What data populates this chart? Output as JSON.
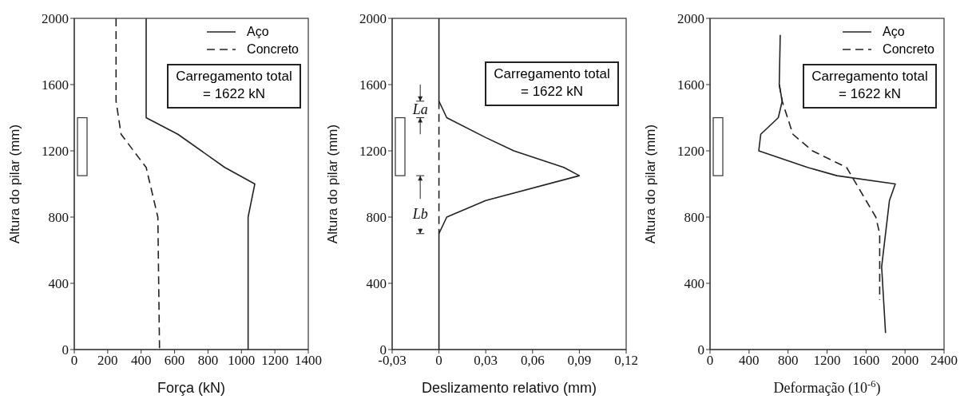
{
  "chart_data": [
    {
      "type": "line",
      "xlabel": "Força (kN)",
      "ylabel": "Altura do pilar (mm)",
      "xlim": [
        0,
        1400
      ],
      "xticks": [
        0,
        200,
        400,
        600,
        800,
        1000,
        1200,
        1400
      ],
      "ylim": [
        0,
        2000
      ],
      "yticks": [
        0,
        400,
        800,
        1200,
        1600,
        2000
      ],
      "grid": false,
      "legend": "top right",
      "marker": "none",
      "annotations": [
        "Carregamento total = 1622 kN"
      ],
      "series": [
        {
          "name": "Aço",
          "color": "#222222",
          "line_style": "solid",
          "x": [
            430,
            430,
            620,
            900,
            1080,
            1040,
            1040
          ],
          "values": [
            2000,
            1400,
            1300,
            1100,
            1000,
            800,
            0
          ]
        },
        {
          "name": "Concreto",
          "color": "#222222",
          "line_style": "dashed",
          "x": [
            250,
            250,
            280,
            430,
            500,
            510
          ],
          "values": [
            2000,
            1500,
            1300,
            1100,
            800,
            0
          ]
        }
      ]
    },
    {
      "type": "line",
      "xlabel": "Deslizamento relativo (mm)",
      "ylabel": "Altura do pilar (mm)",
      "xlim": [
        -0.03,
        0.12
      ],
      "xticks": [
        {
          "value": -0.03,
          "label": "-0,03"
        },
        0,
        {
          "value": 0.03,
          "label": "0,03"
        },
        {
          "value": 0.06,
          "label": "0,06"
        },
        {
          "value": 0.09,
          "label": "0,09"
        },
        {
          "value": 0.12,
          "label": "0,12"
        }
      ],
      "ylim": [
        0,
        2000
      ],
      "yticks": [
        0,
        400,
        800,
        1200,
        1600,
        2000
      ],
      "grid": false,
      "legend": false,
      "marker": "none",
      "annotations": [
        "Carregamento total = 1622 kN",
        "La",
        "Lb"
      ],
      "series": [
        {
          "color": "#222222",
          "line_style": "solid",
          "x": [
            0,
            0,
            0.005,
            0.03,
            0.048,
            0.08,
            0.09,
            0.03,
            0.005,
            0,
            0
          ],
          "values": [
            2000,
            1500,
            1400,
            1280,
            1200,
            1100,
            1050,
            900,
            800,
            700,
            0
          ]
        },
        {
          "color": "#222222",
          "line_style": "dashed",
          "x": [
            0,
            0
          ],
          "values": [
            1500,
            700
          ]
        }
      ]
    },
    {
      "type": "line",
      "xlabel": "Deformação (10$^{-6}$)",
      "ylabel": "Altura do pilar (mm)",
      "xlim": [
        0,
        2400
      ],
      "xticks": [
        0,
        400,
        800,
        1200,
        1600,
        2000,
        2400
      ],
      "ylim": [
        0,
        2000
      ],
      "yticks": [
        0,
        400,
        800,
        1200,
        1600,
        2000
      ],
      "grid": false,
      "legend": "top right",
      "marker": "none",
      "annotations": [
        "Carregamento total = 1622 kN"
      ],
      "series": [
        {
          "name": "Aço",
          "color": "#222222",
          "line_style": "solid",
          "x": [
            720,
            710,
            740,
            700,
            520,
            500,
            1000,
            1300,
            1900,
            1840,
            1760,
            1800
          ],
          "values": [
            1900,
            1600,
            1500,
            1400,
            1300,
            1200,
            1100,
            1050,
            1000,
            900,
            500,
            100
          ]
        },
        {
          "name": "Concreto",
          "color": "#222222",
          "line_style": "dashed",
          "x": [
            710,
            740,
            850,
            1050,
            1400,
            1600,
            1700,
            1740,
            1740,
            1740
          ],
          "values": [
            1600,
            1500,
            1300,
            1200,
            1100,
            900,
            800,
            700,
            500,
            300
          ]
        }
      ]
    }
  ]
}
